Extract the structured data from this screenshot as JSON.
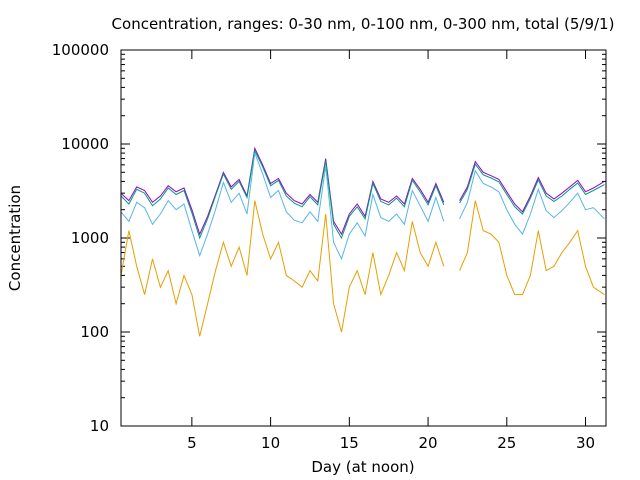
{
  "chart_data": {
    "type": "line",
    "title": "Concentration, ranges: 0-30 nm, 0-100 nm, 0-300 nm, total (5/9/1)",
    "xlabel": "Day (at noon)",
    "ylabel": "Concentration",
    "xlim": [
      0.5,
      31.3
    ],
    "ylim": [
      10,
      100000
    ],
    "yscale": "log",
    "x_ticks": [
      5,
      10,
      15,
      20,
      25,
      30
    ],
    "y_ticks": [
      10,
      100,
      1000,
      10000,
      100000
    ],
    "y_tick_labels": [
      "10",
      "100",
      "1000",
      "10000",
      "100000"
    ],
    "grid": false,
    "legend": "none",
    "data_gap": [
      21.1,
      21.9
    ],
    "series": [
      {
        "color": "#9400d3",
        "x": [
          0.5,
          1,
          1.5,
          2,
          2.5,
          3,
          3.5,
          4,
          4.5,
          5,
          5.5,
          6,
          6.5,
          7,
          7.5,
          8,
          8.5,
          9,
          9.5,
          10,
          10.5,
          11,
          11.5,
          12,
          12.5,
          13,
          13.5,
          14,
          14.5,
          15,
          15.5,
          16,
          16.5,
          17,
          17.5,
          18,
          18.5,
          19,
          19.5,
          20,
          20.5,
          21,
          22,
          22.5,
          23,
          23.5,
          24,
          24.5,
          25,
          25.5,
          26,
          26.5,
          27,
          27.5,
          28,
          28.5,
          29,
          29.5,
          30,
          30.5,
          31.2
        ],
        "y": [
          3000,
          2500,
          3500,
          3200,
          2400,
          2800,
          3600,
          3100,
          3400,
          2000,
          1100,
          1700,
          2900,
          5000,
          3500,
          4200,
          2800,
          9000,
          6000,
          3800,
          4300,
          3000,
          2500,
          2300,
          2900,
          2400,
          7000,
          1500,
          1100,
          1800,
          2300,
          1700,
          4000,
          2600,
          2400,
          2800,
          2300,
          4300,
          3300,
          2400,
          3800,
          2400,
          2500,
          3500,
          6500,
          5000,
          4600,
          4200,
          3100,
          2300,
          1900,
          2800,
          4400,
          3000,
          2600,
          3000,
          3500,
          4100,
          3100,
          3400,
          4000
        ]
      },
      {
        "color": "#009e73",
        "x": [
          0.5,
          1,
          1.5,
          2,
          2.5,
          3,
          3.5,
          4,
          4.5,
          5,
          5.5,
          6,
          6.5,
          7,
          7.5,
          8,
          8.5,
          9,
          9.5,
          10,
          10.5,
          11,
          11.5,
          12,
          12.5,
          13,
          13.5,
          14,
          14.5,
          15,
          15.5,
          16,
          16.5,
          17,
          17.5,
          18,
          18.5,
          19,
          19.5,
          20,
          20.5,
          21,
          22,
          22.5,
          23,
          23.5,
          24,
          24.5,
          25,
          25.5,
          26,
          26.5,
          27,
          27.5,
          28,
          28.5,
          29,
          29.5,
          30,
          30.5,
          31.2
        ],
        "y": [
          2800,
          2300,
          3300,
          3000,
          2200,
          2600,
          3400,
          2900,
          3200,
          1850,
          1000,
          1600,
          2800,
          4800,
          3300,
          4000,
          2700,
          8500,
          5700,
          3600,
          4100,
          2800,
          2350,
          2150,
          2750,
          2250,
          6600,
          1400,
          1000,
          1700,
          2150,
          1600,
          3800,
          2450,
          2250,
          2650,
          2150,
          4100,
          3100,
          2250,
          3600,
          2250,
          2350,
          3300,
          6100,
          4700,
          4350,
          3950,
          2900,
          2150,
          1800,
          2650,
          4150,
          2800,
          2450,
          2800,
          3300,
          3850,
          2900,
          3200,
          3700
        ]
      },
      {
        "color": "#56b4e9",
        "x": [
          0.5,
          1,
          1.5,
          2,
          2.5,
          3,
          3.5,
          4,
          4.5,
          5,
          5.5,
          6,
          6.5,
          7,
          7.5,
          8,
          8.5,
          9,
          9.5,
          10,
          10.5,
          11,
          11.5,
          12,
          12.5,
          13,
          13.5,
          14,
          14.5,
          15,
          15.5,
          16,
          16.5,
          17,
          17.5,
          18,
          18.5,
          19,
          19.5,
          20,
          20.5,
          21,
          22,
          22.5,
          23,
          23.5,
          24,
          24.5,
          25,
          25.5,
          26,
          26.5,
          27,
          27.5,
          28,
          28.5,
          29,
          29.5,
          30,
          30.5,
          31.2
        ],
        "y": [
          1900,
          1500,
          2400,
          2100,
          1400,
          1800,
          2500,
          2000,
          2300,
          1200,
          650,
          1100,
          2000,
          3900,
          2400,
          3000,
          1800,
          8000,
          4800,
          2700,
          3200,
          1900,
          1550,
          1450,
          1900,
          1500,
          5800,
          900,
          600,
          1100,
          1450,
          1050,
          2900,
          1650,
          1500,
          1800,
          1400,
          3200,
          2200,
          1500,
          2700,
          1500,
          1600,
          2400,
          5200,
          3800,
          3500,
          3100,
          2000,
          1400,
          1100,
          1800,
          3300,
          1950,
          1650,
          1950,
          2400,
          3000,
          2000,
          2100,
          1600
        ]
      },
      {
        "color": "#e69f00",
        "x": [
          0.5,
          1,
          1.5,
          2,
          2.5,
          3,
          3.5,
          4,
          4.5,
          5,
          5.5,
          6,
          6.5,
          7,
          7.5,
          8,
          8.5,
          9,
          9.5,
          10,
          10.5,
          11,
          11.5,
          12,
          12.5,
          13,
          13.5,
          14,
          14.5,
          15,
          15.5,
          16,
          16.5,
          17,
          17.5,
          18,
          18.5,
          19,
          19.5,
          20,
          20.5,
          21,
          22,
          22.5,
          23,
          23.5,
          24,
          24.5,
          25,
          25.5,
          26,
          26.5,
          27,
          27.5,
          28,
          28.5,
          29,
          29.5,
          30,
          30.5,
          31.2
        ],
        "y": [
          400,
          1200,
          500,
          250,
          600,
          300,
          450,
          200,
          400,
          250,
          90,
          200,
          450,
          900,
          500,
          800,
          400,
          2500,
          1100,
          600,
          900,
          400,
          350,
          300,
          450,
          350,
          1800,
          200,
          100,
          300,
          450,
          250,
          700,
          250,
          400,
          700,
          450,
          1500,
          700,
          500,
          900,
          500,
          450,
          700,
          2500,
          1200,
          1100,
          900,
          400,
          250,
          250,
          400,
          1200,
          450,
          500,
          700,
          900,
          1200,
          500,
          300,
          250
        ]
      }
    ]
  }
}
